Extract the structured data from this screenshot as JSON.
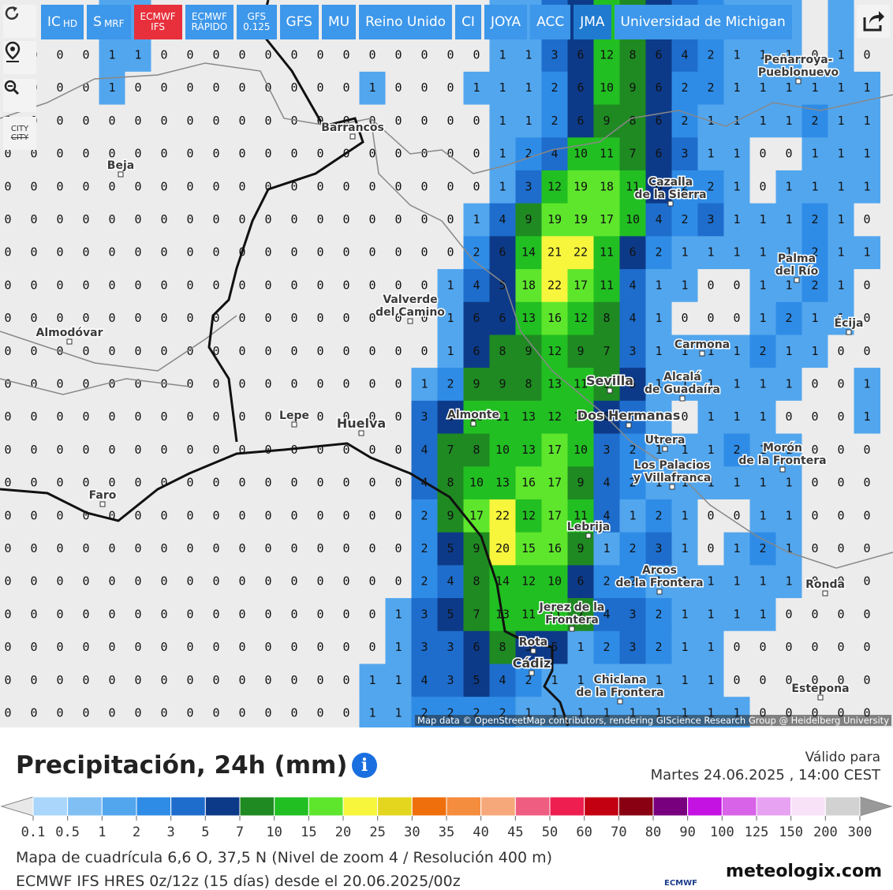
{
  "toolbar": {
    "buttons": [
      {
        "text": "IC",
        "sub": "HD"
      },
      {
        "text": "S",
        "sub": "MRF"
      },
      {
        "lines": [
          "ECMWF",
          "IFS"
        ]
      },
      {
        "lines": [
          "ECMWF",
          "RÁPIDO"
        ]
      },
      {
        "lines": [
          "GFS",
          "0.125"
        ]
      },
      {
        "text": "GFS"
      },
      {
        "text": "MU"
      },
      {
        "text": "Reino Unido"
      },
      {
        "text": "CI"
      },
      {
        "text": "JOYA"
      },
      {
        "text": "ACC"
      },
      {
        "text": "JMA"
      },
      {
        "text": "Universidad de Michigan"
      }
    ]
  },
  "sidebar": {
    "city_toggle": "CITY"
  },
  "map": {
    "cities": [
      [
        "Peñarroya-",
        "Pueblonuevo"
      ],
      [
        "Barrancos"
      ],
      [
        "Beja"
      ],
      [
        "Cazalla",
        "de la Sierra"
      ],
      [
        "Palma",
        "del Río"
      ],
      [
        "Valverde",
        "del Camino"
      ],
      [
        "Écija"
      ],
      [
        "Almodóvar"
      ],
      [
        "Carmona"
      ],
      [
        "Alcalá",
        "de Guadaíra"
      ],
      [
        "Sevilla"
      ],
      [
        "Lepe"
      ],
      [
        "Huelva"
      ],
      [
        "Almonte"
      ],
      [
        "Dos Hermanas"
      ],
      [
        "Utrera"
      ],
      [
        "Morón",
        "de la Frontera"
      ],
      [
        "Los Palacios",
        "y Villafranca"
      ],
      [
        "Faro"
      ],
      [
        "Lebrija"
      ],
      [
        "Arcos",
        "de la Frontera"
      ],
      [
        "Ronda"
      ],
      [
        "Jerez de la",
        "Frontera"
      ],
      [
        "Rota"
      ],
      [
        "Cádiz"
      ],
      [
        "Chiclana",
        "de la Frontera"
      ],
      [
        "Estepona"
      ]
    ],
    "attribution": "Map data © OpenStreetMap contributors, rendering GIScience Research Group @ Heidelberg University",
    "grid": [
      [
        0,
        0,
        0,
        0,
        1,
        1,
        0,
        0,
        0,
        0,
        0,
        0,
        0,
        0,
        0,
        0,
        0,
        0,
        0,
        1,
        1,
        3,
        6,
        12,
        8,
        6,
        4,
        2,
        1,
        1,
        1,
        0,
        1,
        0
      ],
      [
        0,
        0,
        0,
        0,
        1,
        0,
        0,
        0,
        0,
        0,
        0,
        0,
        0,
        0,
        1,
        0,
        0,
        0,
        1,
        1,
        1,
        2,
        6,
        10,
        9,
        6,
        2,
        2,
        1,
        1,
        1,
        1,
        1,
        1
      ],
      [
        0,
        0,
        0,
        0,
        0,
        0,
        0,
        0,
        0,
        0,
        0,
        0,
        0,
        0,
        0,
        0,
        0,
        0,
        0,
        1,
        1,
        2,
        6,
        9,
        8,
        6,
        2,
        1,
        1,
        1,
        1,
        2,
        1,
        1
      ],
      [
        0,
        0,
        0,
        0,
        0,
        0,
        0,
        0,
        0,
        0,
        0,
        0,
        0,
        0,
        0,
        0,
        0,
        0,
        0,
        1,
        2,
        4,
        10,
        11,
        7,
        6,
        3,
        1,
        1,
        0,
        0,
        1,
        1,
        1
      ],
      [
        0,
        0,
        0,
        0,
        0,
        0,
        0,
        0,
        0,
        0,
        0,
        0,
        0,
        0,
        0,
        0,
        0,
        0,
        0,
        1,
        3,
        12,
        19,
        18,
        11,
        6,
        2,
        2,
        1,
        0,
        1,
        1,
        1,
        1
      ],
      [
        0,
        0,
        0,
        0,
        0,
        0,
        0,
        0,
        0,
        0,
        0,
        0,
        0,
        0,
        0,
        0,
        0,
        0,
        1,
        4,
        9,
        19,
        19,
        17,
        10,
        4,
        2,
        3,
        1,
        1,
        1,
        2,
        1,
        0
      ],
      [
        0,
        0,
        0,
        0,
        0,
        0,
        0,
        0,
        0,
        0,
        0,
        0,
        0,
        0,
        0,
        0,
        0,
        0,
        2,
        6,
        14,
        21,
        22,
        11,
        6,
        2,
        1,
        1,
        1,
        1,
        1,
        2,
        1,
        1
      ],
      [
        0,
        0,
        0,
        0,
        0,
        0,
        0,
        0,
        0,
        0,
        0,
        0,
        0,
        0,
        0,
        0,
        0,
        1,
        4,
        5,
        18,
        22,
        17,
        11,
        4,
        1,
        1,
        0,
        0,
        1,
        1,
        2,
        1,
        0
      ],
      [
        0,
        0,
        0,
        0,
        0,
        0,
        0,
        0,
        0,
        0,
        0,
        0,
        0,
        0,
        0,
        0,
        0,
        1,
        6,
        6,
        13,
        16,
        12,
        8,
        4,
        1,
        0,
        0,
        0,
        1,
        2,
        1,
        1,
        0
      ],
      [
        0,
        0,
        0,
        0,
        0,
        0,
        0,
        0,
        0,
        0,
        0,
        0,
        0,
        0,
        0,
        0,
        0,
        1,
        6,
        8,
        9,
        12,
        9,
        7,
        3,
        1,
        1,
        1,
        1,
        2,
        1,
        1,
        0,
        0
      ],
      [
        0,
        0,
        0,
        0,
        0,
        0,
        0,
        0,
        0,
        0,
        0,
        0,
        0,
        0,
        0,
        0,
        1,
        2,
        9,
        9,
        8,
        13,
        11,
        9,
        5,
        1,
        1,
        1,
        1,
        1,
        1,
        0,
        0,
        1
      ],
      [
        0,
        0,
        0,
        0,
        0,
        0,
        0,
        0,
        0,
        0,
        0,
        0,
        0,
        0,
        0,
        0,
        3,
        6,
        10,
        11,
        13,
        12,
        10,
        6,
        3,
        1,
        0,
        1,
        1,
        1,
        0,
        0,
        0,
        1
      ],
      [
        0,
        0,
        0,
        0,
        0,
        0,
        0,
        0,
        0,
        0,
        0,
        0,
        0,
        0,
        0,
        0,
        4,
        7,
        8,
        10,
        13,
        17,
        10,
        3,
        2,
        1,
        1,
        1,
        2,
        1,
        1,
        0,
        0,
        0
      ],
      [
        0,
        0,
        0,
        0,
        0,
        0,
        0,
        0,
        0,
        0,
        0,
        0,
        0,
        0,
        0,
        0,
        4,
        8,
        10,
        13,
        16,
        17,
        9,
        4,
        2,
        1,
        1,
        1,
        1,
        1,
        1,
        0,
        0,
        0
      ],
      [
        0,
        0,
        0,
        0,
        0,
        0,
        0,
        0,
        0,
        0,
        0,
        0,
        0,
        0,
        0,
        0,
        2,
        9,
        17,
        22,
        12,
        17,
        11,
        4,
        1,
        2,
        1,
        0,
        0,
        1,
        1,
        0,
        0,
        0
      ],
      [
        0,
        0,
        0,
        0,
        0,
        0,
        0,
        0,
        0,
        0,
        0,
        0,
        0,
        0,
        0,
        0,
        2,
        5,
        9,
        20,
        15,
        16,
        9,
        1,
        2,
        3,
        1,
        0,
        1,
        2,
        1,
        0,
        0,
        0
      ],
      [
        0,
        0,
        0,
        0,
        0,
        0,
        0,
        0,
        0,
        0,
        0,
        0,
        0,
        0,
        0,
        0,
        2,
        4,
        8,
        14,
        12,
        10,
        6,
        2,
        2,
        1,
        1,
        1,
        1,
        1,
        1,
        0,
        0,
        0
      ],
      [
        0,
        0,
        0,
        0,
        0,
        0,
        0,
        0,
        0,
        0,
        0,
        0,
        0,
        0,
        0,
        1,
        3,
        5,
        7,
        13,
        11,
        11,
        7,
        4,
        3,
        2,
        1,
        1,
        1,
        1,
        0,
        0,
        0,
        0
      ],
      [
        0,
        0,
        0,
        0,
        0,
        0,
        0,
        0,
        0,
        0,
        0,
        0,
        0,
        0,
        0,
        1,
        3,
        3,
        6,
        8,
        5,
        5,
        1,
        2,
        3,
        2,
        1,
        1,
        0,
        0,
        0,
        0,
        0,
        0
      ],
      [
        0,
        0,
        0,
        0,
        0,
        0,
        0,
        0,
        0,
        0,
        0,
        0,
        0,
        0,
        1,
        1,
        4,
        3,
        5,
        4,
        2,
        1,
        1,
        1,
        1,
        1,
        1,
        1,
        0,
        0,
        0,
        0,
        0,
        0
      ],
      [
        0,
        0,
        0,
        0,
        0,
        0,
        0,
        0,
        0,
        0,
        0,
        0,
        0,
        0,
        1,
        1,
        2,
        2,
        2,
        2,
        1,
        1,
        1,
        1,
        1,
        1,
        1,
        1,
        1,
        0,
        0,
        0,
        0,
        0
      ]
    ]
  },
  "legend": {
    "ticks": [
      0.1,
      0.5,
      1,
      2,
      3,
      5,
      7,
      10,
      15,
      20,
      25,
      30,
      35,
      40,
      45,
      50,
      60,
      70,
      80,
      90,
      100,
      125,
      150,
      200,
      300
    ],
    "colors": [
      "#a9d6fa",
      "#7fbff4",
      "#52a6ee",
      "#2f8ce6",
      "#1e6dcc",
      "#0d3a88",
      "#1f8a22",
      "#22bf22",
      "#5ee62c",
      "#f7f53c",
      "#e4d61e",
      "#ef6f0c",
      "#f58d3e",
      "#f7a87a",
      "#ef5d80",
      "#ee1f50",
      "#c20012",
      "#880012",
      "#78007e",
      "#c412e2",
      "#d862e8",
      "#e8a2f2",
      "#f8e2f8",
      "#d2d2d2"
    ]
  },
  "footer": {
    "title": "Precipitación, 24h (mm)",
    "valid_label": "Válido para",
    "valid_time": "Martes 24.06.2025 ,  14:00 CEST",
    "grid_info": "Mapa de cuadrícula 6,6 O, 37,5 N (Nivel de zoom 4 / Resolución 400 m)",
    "model_info": "ECMWF IFS HRES 0z/12z (15 días) desde el 20.06.2025/00z",
    "ecmwf": "ECMWF",
    "brand": "meteologix.com"
  }
}
